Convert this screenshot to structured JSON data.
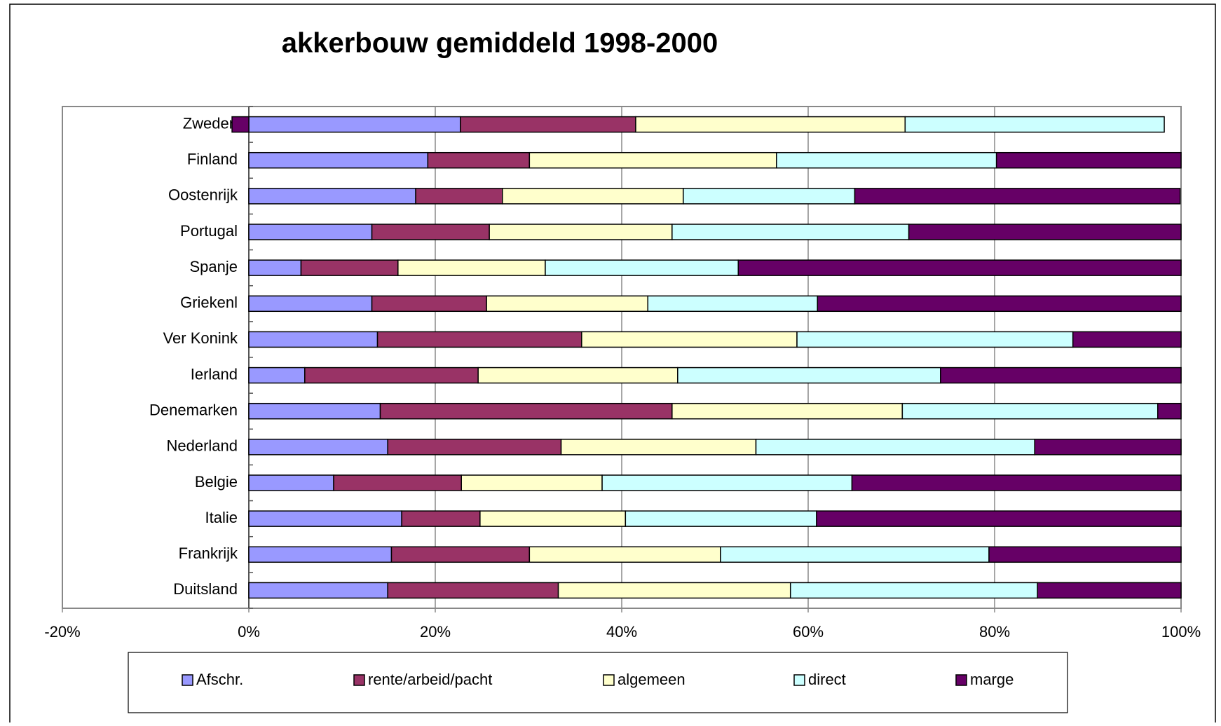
{
  "chart_data": {
    "type": "stacked-bar-horizontal",
    "title": "akkerbouw gemiddeld 1998-2000",
    "categories": [
      "Zweden",
      "Finland",
      "Oostenrijk",
      "Portugal",
      "Spanje",
      "Griekenl",
      "Ver Konink",
      "Ierland",
      "Denemarken",
      "Nederland",
      "Belgie",
      "Italie",
      "Frankrijk",
      "Duitsland"
    ],
    "series": [
      {
        "name": "Afschr.",
        "color": "#9999ff",
        "values": [
          22.7,
          19.2,
          17.9,
          13.2,
          5.6,
          13.2,
          13.8,
          6.0,
          14.1,
          14.9,
          9.1,
          16.4,
          15.3,
          14.9
        ]
      },
      {
        "name": "rente/arbeid/pacht",
        "color": "#993366",
        "values": [
          18.8,
          10.9,
          9.3,
          12.6,
          10.4,
          12.3,
          21.9,
          18.6,
          31.3,
          18.6,
          13.7,
          8.4,
          14.8,
          18.3
        ]
      },
      {
        "name": "algemeen",
        "color": "#ffffcc",
        "values": [
          28.9,
          26.5,
          19.4,
          19.6,
          15.8,
          17.3,
          23.1,
          21.4,
          24.7,
          20.9,
          15.1,
          15.6,
          20.5,
          24.9
        ]
      },
      {
        "name": "direct",
        "color": "#ccffff",
        "values": [
          27.8,
          23.6,
          18.4,
          25.4,
          20.7,
          18.2,
          29.6,
          28.2,
          27.4,
          29.9,
          26.8,
          20.5,
          28.8,
          26.5
        ]
      },
      {
        "name": "marge",
        "color": "#660066",
        "values": [
          -1.8,
          19.8,
          34.9,
          29.2,
          47.5,
          39.0,
          11.6,
          25.8,
          2.5,
          15.7,
          35.3,
          39.1,
          20.6,
          15.4
        ]
      }
    ],
    "xlim": [
      -20,
      100
    ],
    "xticks": [
      {
        "value": -20,
        "label": "-20%"
      },
      {
        "value": 0,
        "label": "0%"
      },
      {
        "value": 20,
        "label": "20%"
      },
      {
        "value": 40,
        "label": "40%"
      },
      {
        "value": 60,
        "label": "60%"
      },
      {
        "value": 80,
        "label": "80%"
      },
      {
        "value": 100,
        "label": "100%"
      }
    ],
    "grid": true,
    "legend": "bottom"
  }
}
